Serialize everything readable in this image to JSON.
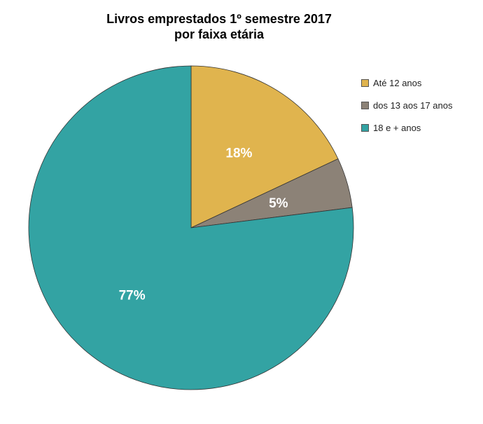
{
  "chart_data": {
    "type": "pie",
    "title": "Livros emprestados 1º semestre 2017",
    "subtitle": "por faixa etária",
    "start_angle_deg": 0,
    "direction": "clockwise",
    "legend_position": "right",
    "slices": [
      {
        "label": "Até 12 anos",
        "value": 18,
        "display": "18%",
        "color": "#E0B44E"
      },
      {
        "label": "dos 13 aos 17 anos",
        "value": 5,
        "display": "5%",
        "color": "#8C8277"
      },
      {
        "label": "18 e + anos",
        "value": 77,
        "display": "77%",
        "color": "#33A3A3"
      }
    ]
  }
}
